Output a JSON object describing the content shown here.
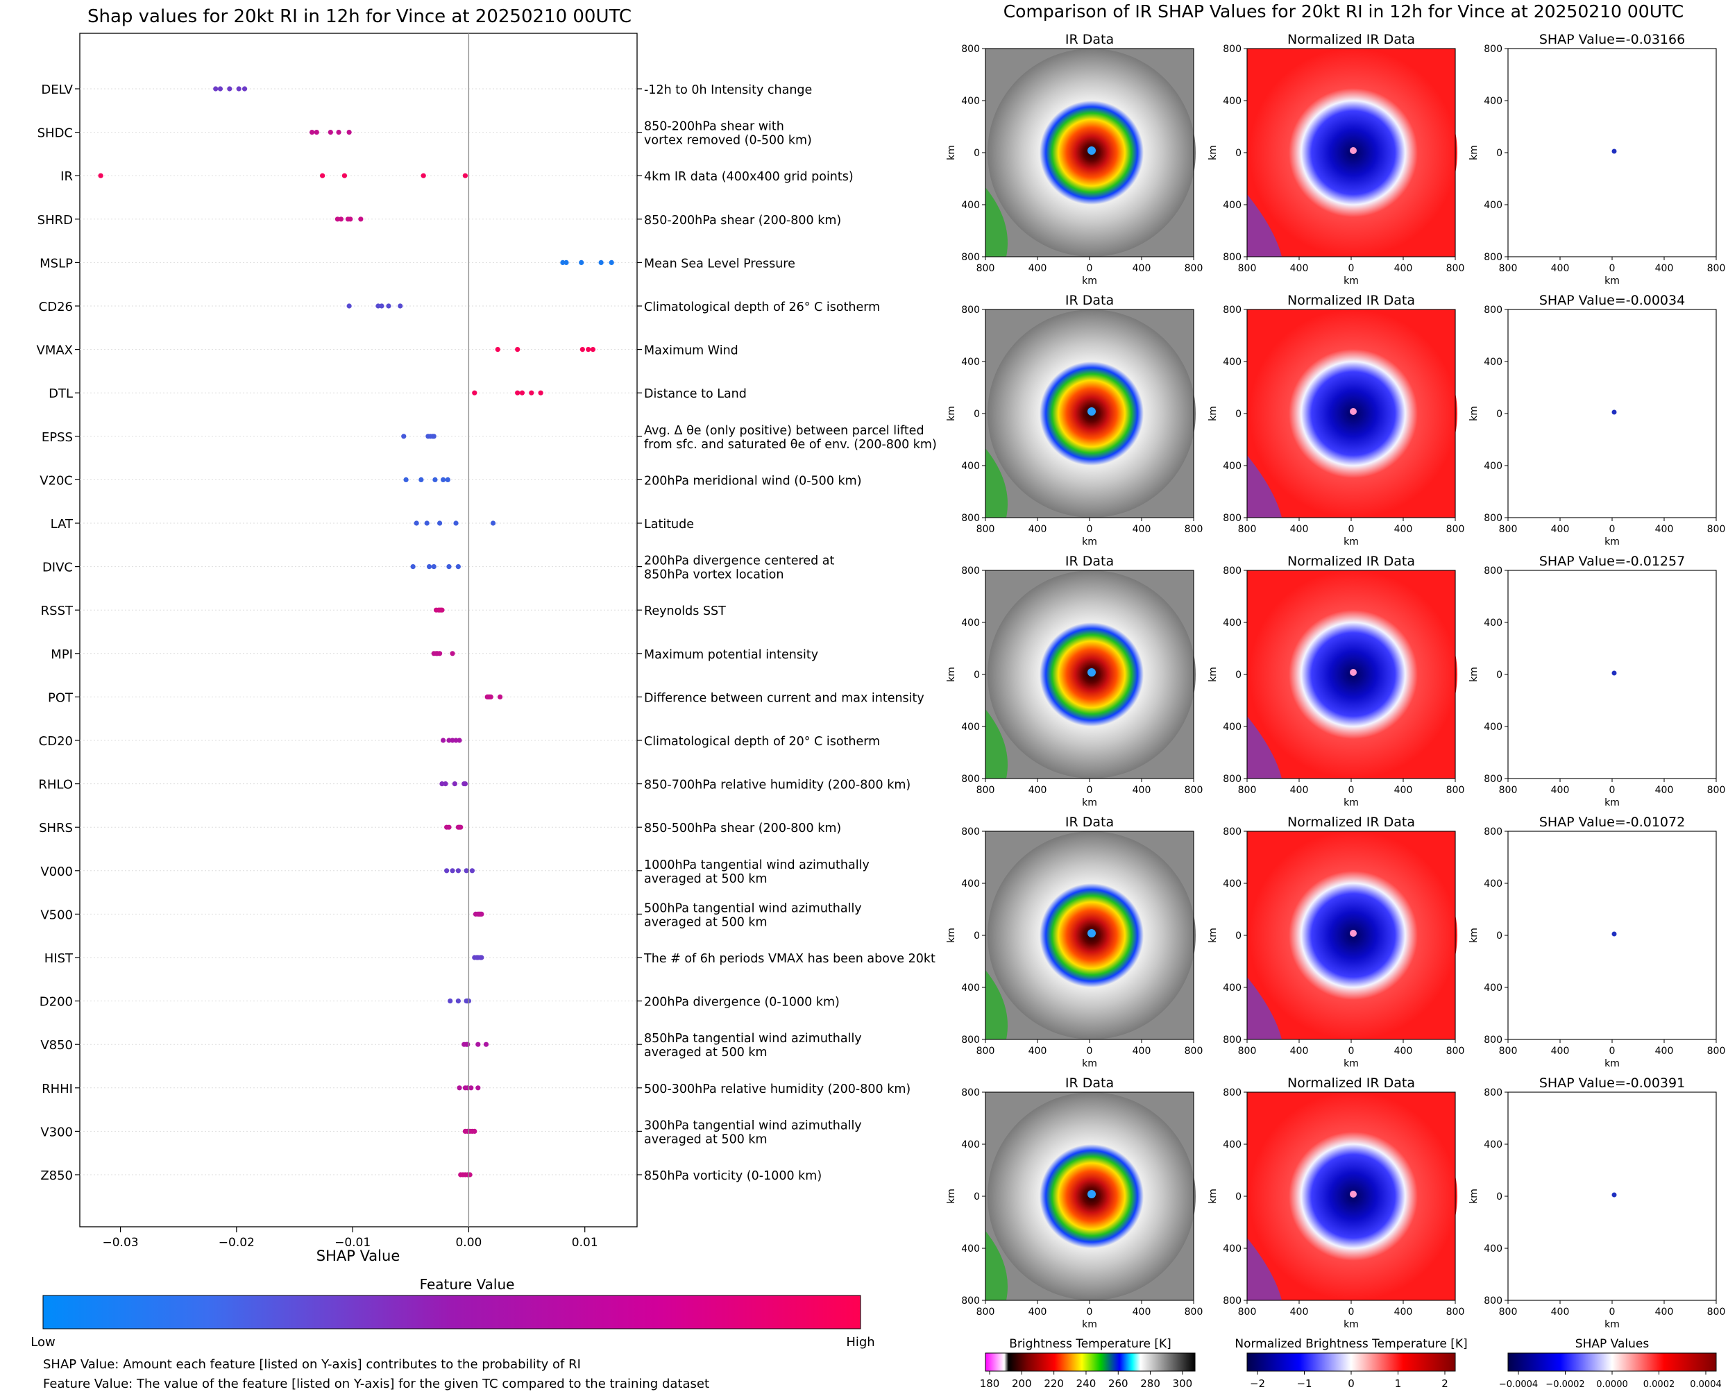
{
  "left_title": "Shap values for 20kt RI in 12h for Vince at 20250210 00UTC",
  "right_title": "Comparison of IR SHAP Values for 20kt RI in 12h for Vince at 20250210 00UTC",
  "feature_value_title": "Feature Value",
  "feature_value_low": "Low",
  "feature_value_high": "High",
  "footnote_1": "SHAP Value: Amount each feature [listed on Y-axis] contributes to the probability of RI",
  "footnote_2": "Feature Value: The value of the feature [listed on Y-axis] for the given TC compared to the training dataset",
  "colors": {
    "low": "#008bfb",
    "mid": "#9c19b2",
    "high": "#ff0052",
    "zero_line": "#8c8c8c",
    "guide": "#dddddd"
  },
  "panel_titles": [
    "IR Data",
    "Normalized IR Data"
  ],
  "km_label": "km",
  "panel_ticks": [
    "800",
    "400",
    "0",
    "400",
    "800"
  ],
  "colorbars": [
    {
      "label": "Brightness Temperature [K]",
      "ticks": [
        "180",
        "200",
        "220",
        "240",
        "260",
        "280",
        "300"
      ]
    },
    {
      "label": "Normalized Brightness Temperature [K]",
      "ticks": [
        "−2",
        "−1",
        "0",
        "1",
        "2"
      ]
    },
    {
      "label": "SHAP Values",
      "ticks": [
        "−0.0004",
        "−0.0002",
        "0.0000",
        "0.0002",
        "0.0004"
      ]
    }
  ],
  "chart_data": [
    {
      "type": "scatter",
      "title": "Shap values for 20kt RI in 12h for Vince at 20250210 00UTC",
      "xlabel": "SHAP Value",
      "xlim": [
        -0.0335,
        0.0145
      ],
      "xticks": [
        -0.03,
        -0.02,
        -0.01,
        0.0,
        0.01
      ],
      "xtick_labels": [
        "−0.03",
        "−0.02",
        "−0.01",
        "0.00",
        "0.01"
      ],
      "grid": false,
      "features": [
        {
          "name": "DELV",
          "desc": "-12h to 0h Intensity change",
          "values": [
            -0.0218,
            -0.0214,
            -0.0206,
            -0.0198,
            -0.0193
          ],
          "fv": 0.35
        },
        {
          "name": "SHDC",
          "desc": "850-200hPa shear with\nvortex removed (0-500 km)",
          "values": [
            -0.0135,
            -0.0131,
            -0.0119,
            -0.0112,
            -0.0103
          ],
          "fv": 0.68
        },
        {
          "name": "IR",
          "desc": "4km IR data (400x400 grid points)",
          "values": [
            -0.0317,
            -0.0126,
            -0.0107,
            -0.0039,
            -0.0003
          ],
          "fv": 0.95
        },
        {
          "name": "SHRD",
          "desc": "850-200hPa shear (200-800 km)",
          "values": [
            -0.0113,
            -0.011,
            -0.0104,
            -0.0102,
            -0.0093
          ],
          "fv": 0.72
        },
        {
          "name": "MSLP",
          "desc": "Mean Sea Level Pressure",
          "values": [
            0.0081,
            0.0084,
            0.0097,
            0.0114,
            0.0123
          ],
          "fv": 0.08
        },
        {
          "name": "CD26",
          "desc": "Climatological depth of 26° C isotherm",
          "values": [
            -0.0103,
            -0.0078,
            -0.0075,
            -0.0069,
            -0.0059
          ],
          "fv": 0.28
        },
        {
          "name": "VMAX",
          "desc": "Maximum Wind",
          "values": [
            0.0025,
            0.0042,
            0.0098,
            0.0103,
            0.0107
          ],
          "fv": 0.97
        },
        {
          "name": "DTL",
          "desc": "Distance to Land",
          "values": [
            0.0005,
            0.0042,
            0.0046,
            0.0054,
            0.0062
          ],
          "fv": 0.95
        },
        {
          "name": "EPSS",
          "desc": "Avg. Δ θe (only positive) between parcel lifted\nfrom sfc. and saturated θe of env. (200-800 km)",
          "values": [
            -0.0056,
            -0.0035,
            -0.0033,
            -0.0031,
            -0.003
          ],
          "fv": 0.22
        },
        {
          "name": "V20C",
          "desc": "200hPa meridional wind (0-500 km)",
          "values": [
            -0.0054,
            -0.0041,
            -0.0029,
            -0.0022,
            -0.0018
          ],
          "fv": 0.18
        },
        {
          "name": "LAT",
          "desc": "Latitude",
          "values": [
            -0.0045,
            -0.0036,
            -0.0025,
            -0.0011,
            0.0021
          ],
          "fv": 0.2
        },
        {
          "name": "DIVC",
          "desc": "200hPa divergence centered at\n850hPa vortex location",
          "values": [
            -0.0048,
            -0.0034,
            -0.003,
            -0.0017,
            -0.0009
          ],
          "fv": 0.2
        },
        {
          "name": "RSST",
          "desc": "Reynolds SST",
          "values": [
            -0.0028,
            -0.0026,
            -0.0025,
            -0.0024,
            -0.0023
          ],
          "fv": 0.75
        },
        {
          "name": "MPI",
          "desc": "Maximum potential intensity",
          "values": [
            -0.003,
            -0.0028,
            -0.0027,
            -0.0025,
            -0.0014
          ],
          "fv": 0.68
        },
        {
          "name": "POT",
          "desc": "Difference between current and max intensity",
          "values": [
            0.0016,
            0.0017,
            0.0018,
            0.0019,
            0.0027
          ],
          "fv": 0.7
        },
        {
          "name": "CD20",
          "desc": "Climatological depth of 20° C isotherm",
          "values": [
            -0.0022,
            -0.0017,
            -0.0014,
            -0.0011,
            -0.0008
          ],
          "fv": 0.55
        },
        {
          "name": "RHLO",
          "desc": "850-700hPa relative humidity (200-800 km)",
          "values": [
            -0.0023,
            -0.002,
            -0.0012,
            -0.0004,
            -0.0003
          ],
          "fv": 0.42
        },
        {
          "name": "SHRS",
          "desc": "850-500hPa shear (200-800 km)",
          "values": [
            -0.0019,
            -0.0017,
            -0.0009,
            -0.0008,
            -0.0007
          ],
          "fv": 0.68
        },
        {
          "name": "V000",
          "desc": "1000hPa tangential wind azimuthally\naveraged at 500 km",
          "values": [
            -0.0019,
            -0.0014,
            -0.0009,
            -0.0002,
            0.0003
          ],
          "fv": 0.33
        },
        {
          "name": "V500",
          "desc": "500hPa tangential wind azimuthally\naveraged at 500 km",
          "values": [
            0.0006,
            0.0008,
            0.0009,
            0.001,
            0.0011
          ],
          "fv": 0.65
        },
        {
          "name": "HIST",
          "desc": "The # of 6h periods VMAX has been above 20kt",
          "values": [
            0.0005,
            0.0007,
            0.0008,
            0.001,
            0.0011
          ],
          "fv": 0.32
        },
        {
          "name": "D200",
          "desc": "200hPa divergence (0-1000 km)",
          "values": [
            -0.0016,
            -0.0009,
            -0.0002,
            -0.0001,
            0.0
          ],
          "fv": 0.3
        },
        {
          "name": "V850",
          "desc": "850hPa tangential wind azimuthally\naveraged at 500 km",
          "values": [
            -0.0004,
            -0.0002,
            -0.0001,
            0.0008,
            0.0015
          ],
          "fv": 0.58
        },
        {
          "name": "RHHI",
          "desc": "500-300hPa relative humidity (200-800 km)",
          "values": [
            -0.0008,
            -0.0003,
            -0.0001,
            0.0002,
            0.0008
          ],
          "fv": 0.62
        },
        {
          "name": "V300",
          "desc": "300hPa tangential wind azimuthally\naveraged at 500 km",
          "values": [
            -0.0003,
            -0.0001,
            0.0001,
            0.0003,
            0.0005
          ],
          "fv": 0.7
        },
        {
          "name": "Z850",
          "desc": "850hPa vorticity (0-1000 km)",
          "values": [
            -0.0007,
            -0.0005,
            -0.0003,
            -0.0001,
            0.0001
          ],
          "fv": 0.72
        }
      ]
    },
    {
      "type": "heatmap",
      "title": "Comparison of IR SHAP Values for 20kt RI in 12h for Vince at 20250210 00UTC",
      "xlabel": "km",
      "ylabel": "km",
      "shap_titles": [
        "SHAP Value=-0.03166",
        "SHAP Value=-0.00034",
        "SHAP Value=-0.01257",
        "SHAP Value=-0.01072",
        "SHAP Value=-0.00391"
      ],
      "shap_values": [
        -0.03166,
        -0.00034,
        -0.01257,
        -0.01072,
        -0.00391
      ]
    }
  ]
}
